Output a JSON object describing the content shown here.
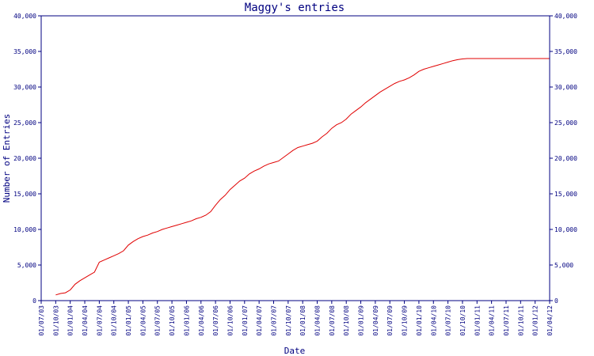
{
  "chart_data": {
    "type": "line",
    "title": "Maggy's entries",
    "xlabel": "Date",
    "ylabel": "Number of Entries",
    "ylim": [
      0,
      40000
    ],
    "y_ticks": [
      {
        "value": 0,
        "label": "0"
      },
      {
        "value": 5000,
        "label": "5,000"
      },
      {
        "value": 10000,
        "label": "10,000"
      },
      {
        "value": 15000,
        "label": "15,000"
      },
      {
        "value": 20000,
        "label": "20,000"
      },
      {
        "value": 25000,
        "label": "25,000"
      },
      {
        "value": 30000,
        "label": "30,000"
      },
      {
        "value": 35000,
        "label": "35,000"
      },
      {
        "value": 40000,
        "label": "40,000"
      }
    ],
    "x_ticks": [
      "01/07/03",
      "01/10/03",
      "01/01/04",
      "01/04/04",
      "01/07/04",
      "01/10/04",
      "01/01/05",
      "01/04/05",
      "01/07/05",
      "01/10/05",
      "01/01/06",
      "01/04/06",
      "01/07/06",
      "01/10/06",
      "01/01/07",
      "01/04/07",
      "01/07/07",
      "01/10/07",
      "01/01/08",
      "01/04/08",
      "01/07/08",
      "01/10/08",
      "01/01/09",
      "01/04/09",
      "01/07/09",
      "01/10/09",
      "01/01/10",
      "01/04/10",
      "01/07/10",
      "01/10/10",
      "01/01/11",
      "01/04/11",
      "01/07/11",
      "01/10/11",
      "01/01/12",
      "01/04/12"
    ],
    "series": [
      {
        "color": "#e00000",
        "points": [
          [
            "01/10/03",
            800
          ],
          [
            "01/11/03",
            1000
          ],
          [
            "01/12/03",
            1100
          ],
          [
            "01/01/04",
            1500
          ],
          [
            "01/02/04",
            2300
          ],
          [
            "01/03/04",
            2800
          ],
          [
            "01/04/04",
            3200
          ],
          [
            "01/05/04",
            3600
          ],
          [
            "01/06/04",
            4000
          ],
          [
            "01/07/04",
            5400
          ],
          [
            "01/08/04",
            5700
          ],
          [
            "01/09/04",
            6000
          ],
          [
            "01/10/04",
            6300
          ],
          [
            "01/11/04",
            6600
          ],
          [
            "01/12/04",
            7000
          ],
          [
            "01/01/05",
            7800
          ],
          [
            "01/02/05",
            8300
          ],
          [
            "01/03/05",
            8700
          ],
          [
            "01/04/05",
            9000
          ],
          [
            "01/05/05",
            9200
          ],
          [
            "01/06/05",
            9500
          ],
          [
            "01/07/05",
            9700
          ],
          [
            "01/08/05",
            10000
          ],
          [
            "01/09/05",
            10200
          ],
          [
            "01/10/05",
            10400
          ],
          [
            "01/11/05",
            10600
          ],
          [
            "01/12/05",
            10800
          ],
          [
            "01/01/06",
            11000
          ],
          [
            "01/02/06",
            11200
          ],
          [
            "01/03/06",
            11500
          ],
          [
            "01/04/06",
            11700
          ],
          [
            "01/05/06",
            12000
          ],
          [
            "01/06/06",
            12500
          ],
          [
            "01/07/06",
            13400
          ],
          [
            "01/08/06",
            14200
          ],
          [
            "01/09/06",
            14800
          ],
          [
            "01/10/06",
            15600
          ],
          [
            "01/11/06",
            16200
          ],
          [
            "01/12/06",
            16800
          ],
          [
            "01/01/07",
            17200
          ],
          [
            "01/02/07",
            17800
          ],
          [
            "01/03/07",
            18200
          ],
          [
            "01/04/07",
            18500
          ],
          [
            "01/05/07",
            18900
          ],
          [
            "01/06/07",
            19200
          ],
          [
            "01/07/07",
            19400
          ],
          [
            "01/08/07",
            19600
          ],
          [
            "01/09/07",
            20100
          ],
          [
            "01/10/07",
            20600
          ],
          [
            "01/11/07",
            21100
          ],
          [
            "01/12/07",
            21500
          ],
          [
            "01/01/08",
            21700
          ],
          [
            "01/02/08",
            21900
          ],
          [
            "01/03/08",
            22100
          ],
          [
            "01/04/08",
            22400
          ],
          [
            "01/05/08",
            23000
          ],
          [
            "01/06/08",
            23500
          ],
          [
            "01/07/08",
            24200
          ],
          [
            "01/08/08",
            24700
          ],
          [
            "01/09/08",
            25000
          ],
          [
            "01/10/08",
            25500
          ],
          [
            "01/11/08",
            26200
          ],
          [
            "01/12/08",
            26700
          ],
          [
            "01/01/09",
            27200
          ],
          [
            "01/02/09",
            27800
          ],
          [
            "01/03/09",
            28300
          ],
          [
            "01/04/09",
            28800
          ],
          [
            "01/05/09",
            29300
          ],
          [
            "01/06/09",
            29700
          ],
          [
            "01/07/09",
            30100
          ],
          [
            "01/08/09",
            30500
          ],
          [
            "01/09/09",
            30800
          ],
          [
            "01/10/09",
            31000
          ],
          [
            "01/11/09",
            31300
          ],
          [
            "01/12/09",
            31700
          ],
          [
            "01/01/10",
            32200
          ],
          [
            "01/02/10",
            32500
          ],
          [
            "01/03/10",
            32700
          ],
          [
            "01/04/10",
            32900
          ],
          [
            "01/05/10",
            33100
          ],
          [
            "01/06/10",
            33300
          ],
          [
            "01/07/10",
            33500
          ],
          [
            "01/08/10",
            33700
          ],
          [
            "01/09/10",
            33850
          ],
          [
            "01/10/10",
            33950
          ],
          [
            "01/11/10",
            34000
          ],
          [
            "01/12/10",
            34000
          ],
          [
            "01/01/11",
            34000
          ],
          [
            "01/04/11",
            34000
          ],
          [
            "01/07/11",
            34000
          ],
          [
            "01/10/11",
            34000
          ],
          [
            "01/01/12",
            34000
          ],
          [
            "01/04/12",
            34000
          ]
        ]
      }
    ]
  }
}
